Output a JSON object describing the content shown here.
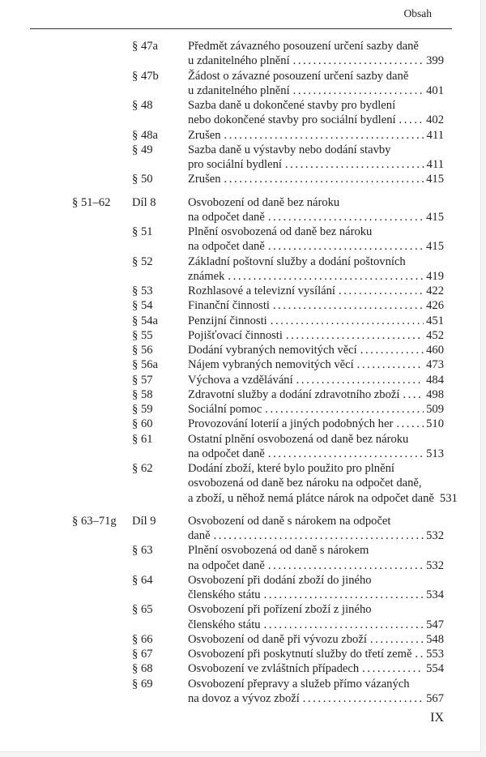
{
  "header": {
    "running_head": "Obsah",
    "folio": "IX"
  },
  "groups": [
    {
      "range": "",
      "div": "",
      "entries": [
        {
          "sec": "§ 47a",
          "lines": [
            "Předmět závazného posouzení určení sazby daně",
            "u zdanitelného plnění"
          ],
          "page": "399"
        },
        {
          "sec": "§ 47b",
          "lines": [
            "Žádost o závazné posouzení určení sazby daně",
            "u zdanitelného plnění"
          ],
          "page": "401"
        },
        {
          "sec": "§ 48",
          "lines": [
            "Sazba daně u dokončené stavby pro bydlení",
            "nebo dokončené stavby pro sociální bydlení"
          ],
          "page": "402"
        },
        {
          "sec": "§ 48a",
          "lines": [
            "Zrušen"
          ],
          "page": "411"
        },
        {
          "sec": "§ 49",
          "lines": [
            "Sazba daně u výstavby nebo dodání stavby",
            "pro sociální bydlení"
          ],
          "page": "411"
        },
        {
          "sec": "§ 50",
          "lines": [
            "Zrušen"
          ],
          "page": "415"
        }
      ]
    },
    {
      "range": "§ 51–62",
      "div": "Díl 8",
      "lines": [
        "Osvobození od daně bez nároku",
        "na odpočet daně"
      ],
      "page": "415",
      "entries": [
        {
          "sec": "§ 51",
          "lines": [
            "Plnění osvobozená od daně bez nároku",
            "na odpočet daně"
          ],
          "page": "415"
        },
        {
          "sec": "§ 52",
          "lines": [
            "Základní poštovní služby a dodání poštovních",
            "známek"
          ],
          "page": "419"
        },
        {
          "sec": "§ 53",
          "lines": [
            "Rozhlasové a televizní vysílání"
          ],
          "page": "422"
        },
        {
          "sec": "§ 54",
          "lines": [
            "Finanční činnosti"
          ],
          "page": "426"
        },
        {
          "sec": "§ 54a",
          "lines": [
            "Penzijní činnosti"
          ],
          "page": "451"
        },
        {
          "sec": "§ 55",
          "lines": [
            "Pojišťovací činnosti"
          ],
          "page": "452"
        },
        {
          "sec": "§ 56",
          "lines": [
            "Dodání vybraných nemovitých věcí"
          ],
          "page": "460"
        },
        {
          "sec": "§ 56a",
          "lines": [
            "Nájem vybraných nemovitých věcí"
          ],
          "page": "473"
        },
        {
          "sec": "§ 57",
          "lines": [
            "Výchova a vzdělávání"
          ],
          "page": "484"
        },
        {
          "sec": "§ 58",
          "lines": [
            "Zdravotní služby a dodání zdravotního zboží"
          ],
          "page": "498"
        },
        {
          "sec": "§ 59",
          "lines": [
            "Sociální pomoc"
          ],
          "page": "509"
        },
        {
          "sec": "§ 60",
          "lines": [
            "Provozování loterií a jiných podobných her"
          ],
          "page": "510"
        },
        {
          "sec": "§ 61",
          "lines": [
            "Ostatní plnění osvobozená od daně bez nároku",
            "na odpočet daně"
          ],
          "page": "513"
        },
        {
          "sec": "§ 62",
          "lines": [
            "Dodání zboží, které bylo použito pro plnění",
            "osvobozená od daně bez nároku na odpočet daně,",
            "a zboží, u něhož nemá plátce nárok na odpočet daně"
          ],
          "page": "531"
        }
      ]
    },
    {
      "range": "§ 63–71g",
      "div": "Díl 9",
      "lines": [
        "Osvobození od daně s nárokem na odpočet",
        "daně"
      ],
      "page": "532",
      "entries": [
        {
          "sec": "§ 63",
          "lines": [
            "Plnění osvobozená od daně s nárokem",
            "na odpočet daně"
          ],
          "page": "532"
        },
        {
          "sec": "§ 64",
          "lines": [
            "Osvobození při dodání zboží do jiného",
            "členského státu"
          ],
          "page": "534"
        },
        {
          "sec": "§ 65",
          "lines": [
            "Osvobození při pořízení zboží z jiného",
            "členského státu"
          ],
          "page": "547"
        },
        {
          "sec": "§ 66",
          "lines": [
            "Osvobození od daně při vývozu zboží"
          ],
          "page": "548"
        },
        {
          "sec": "§ 67",
          "lines": [
            "Osvobození při poskytnutí služby do třetí země"
          ],
          "page": "553"
        },
        {
          "sec": "§ 68",
          "lines": [
            "Osvobození ve zvláštních případech"
          ],
          "page": "554"
        },
        {
          "sec": "§ 69",
          "lines": [
            "Osvobození přepravy a služeb přímo vázaných",
            "na dovoz a vývoz zboží"
          ],
          "page": "567"
        }
      ]
    }
  ]
}
